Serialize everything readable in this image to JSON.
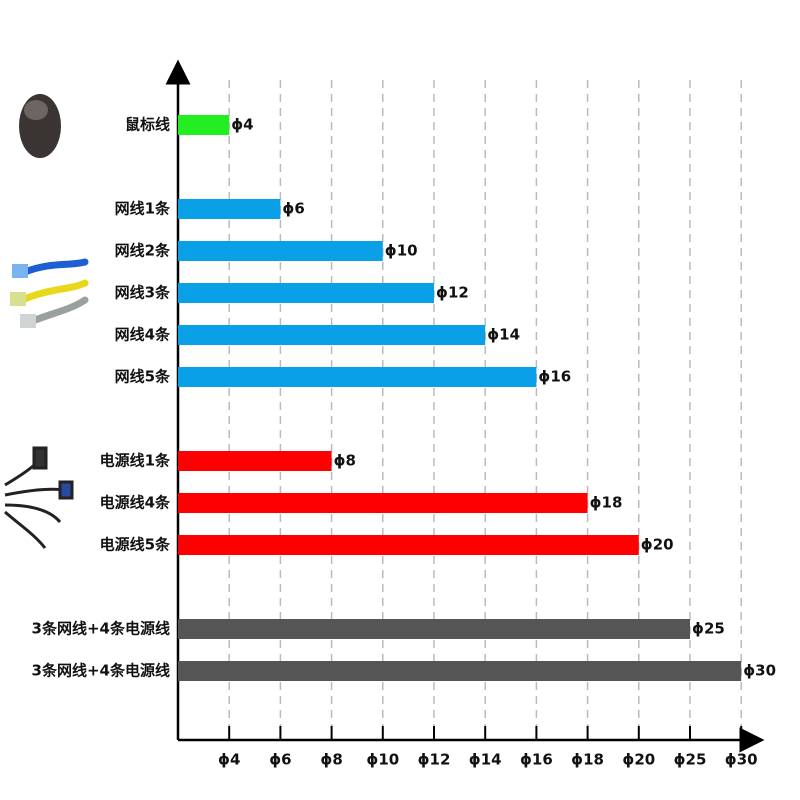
{
  "chart_data": {
    "type": "bar",
    "orientation": "horizontal",
    "categories": [
      "鼠标线",
      null,
      "网线1条",
      "网线2条",
      "网线3条",
      "网线4条",
      "网线5条",
      null,
      "电源线1条",
      "电源线4条",
      "电源线5条",
      null,
      "3条网线+4条电源线",
      "3条网线+4条电源线"
    ],
    "values": [
      4,
      null,
      6,
      10,
      12,
      14,
      16,
      null,
      8,
      18,
      20,
      null,
      25,
      30
    ],
    "value_labels": [
      "ϕ4",
      null,
      "ϕ6",
      "ϕ10",
      "ϕ12",
      "ϕ14",
      "ϕ16",
      null,
      "ϕ8",
      "ϕ18",
      "ϕ20",
      null,
      "ϕ25",
      "ϕ30"
    ],
    "colors": [
      "#22ee22",
      null,
      "#0aa0e8",
      "#0aa0e8",
      "#0aa0e8",
      "#0aa0e8",
      "#0aa0e8",
      null,
      "#ff0000",
      "#ff0000",
      "#ff0000",
      null,
      "#555555",
      "#555555"
    ],
    "xlim": [
      2,
      30
    ],
    "xticks": [
      {
        "value": 4,
        "label": "ϕ4"
      },
      {
        "value": 6,
        "label": "ϕ6"
      },
      {
        "value": 8,
        "label": "ϕ8"
      },
      {
        "value": 10,
        "label": "ϕ10"
      },
      {
        "value": 12,
        "label": "ϕ12"
      },
      {
        "value": 14,
        "label": "ϕ14"
      },
      {
        "value": 16,
        "label": "ϕ16"
      },
      {
        "value": 18,
        "label": "ϕ18"
      },
      {
        "value": 20,
        "label": "ϕ20"
      },
      {
        "value": 25,
        "label": "ϕ25"
      },
      {
        "value": 30,
        "label": "ϕ30"
      }
    ],
    "grid": true
  }
}
